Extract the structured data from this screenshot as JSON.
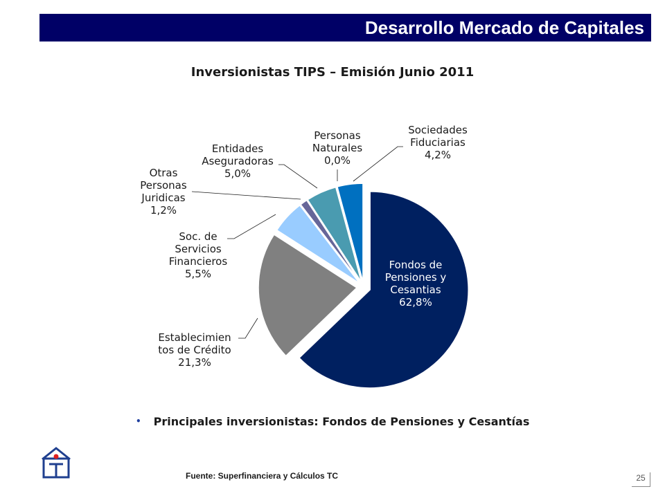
{
  "header": {
    "title": "Desarrollo Mercado de Capitales"
  },
  "colors": {
    "header_bg": "#000066",
    "slices": [
      "#002060",
      "#808080",
      "#99CCFF",
      "#666699",
      "#4A9BB0",
      "#3399FF",
      "#0070C0"
    ]
  },
  "chart_data": {
    "type": "pie",
    "title": "Inversionistas TIPS – Emisión Junio 2011",
    "slices": [
      {
        "label_lines": [
          "Fondos de",
          "Pensiones y",
          "Cesantias"
        ],
        "value": 62.8,
        "value_label": "62,8%"
      },
      {
        "label_lines": [
          "Establecimien",
          "tos de Crédito"
        ],
        "value": 21.3,
        "value_label": "21,3%"
      },
      {
        "label_lines": [
          "Soc. de",
          "Servicios",
          "Financieros"
        ],
        "value": 5.5,
        "value_label": "5,5%"
      },
      {
        "label_lines": [
          "Otras",
          "Personas",
          "Juridicas"
        ],
        "value": 1.2,
        "value_label": "1,2%"
      },
      {
        "label_lines": [
          "Entidades",
          "Aseguradoras"
        ],
        "value": 5.0,
        "value_label": "5,0%"
      },
      {
        "label_lines": [
          "Personas",
          "Naturales"
        ],
        "value": 0.0,
        "value_label": "0,0%"
      },
      {
        "label_lines": [
          "Sociedades",
          "Fiduciarias"
        ],
        "value": 4.2,
        "value_label": "4,2%"
      }
    ]
  },
  "bullet": {
    "text": "Principales inversionistas: Fondos de Pensiones y Cesantías"
  },
  "footer": {
    "source": "Fuente:  Superfinanciera  y  Cálculos  TC",
    "page_number": "25"
  }
}
